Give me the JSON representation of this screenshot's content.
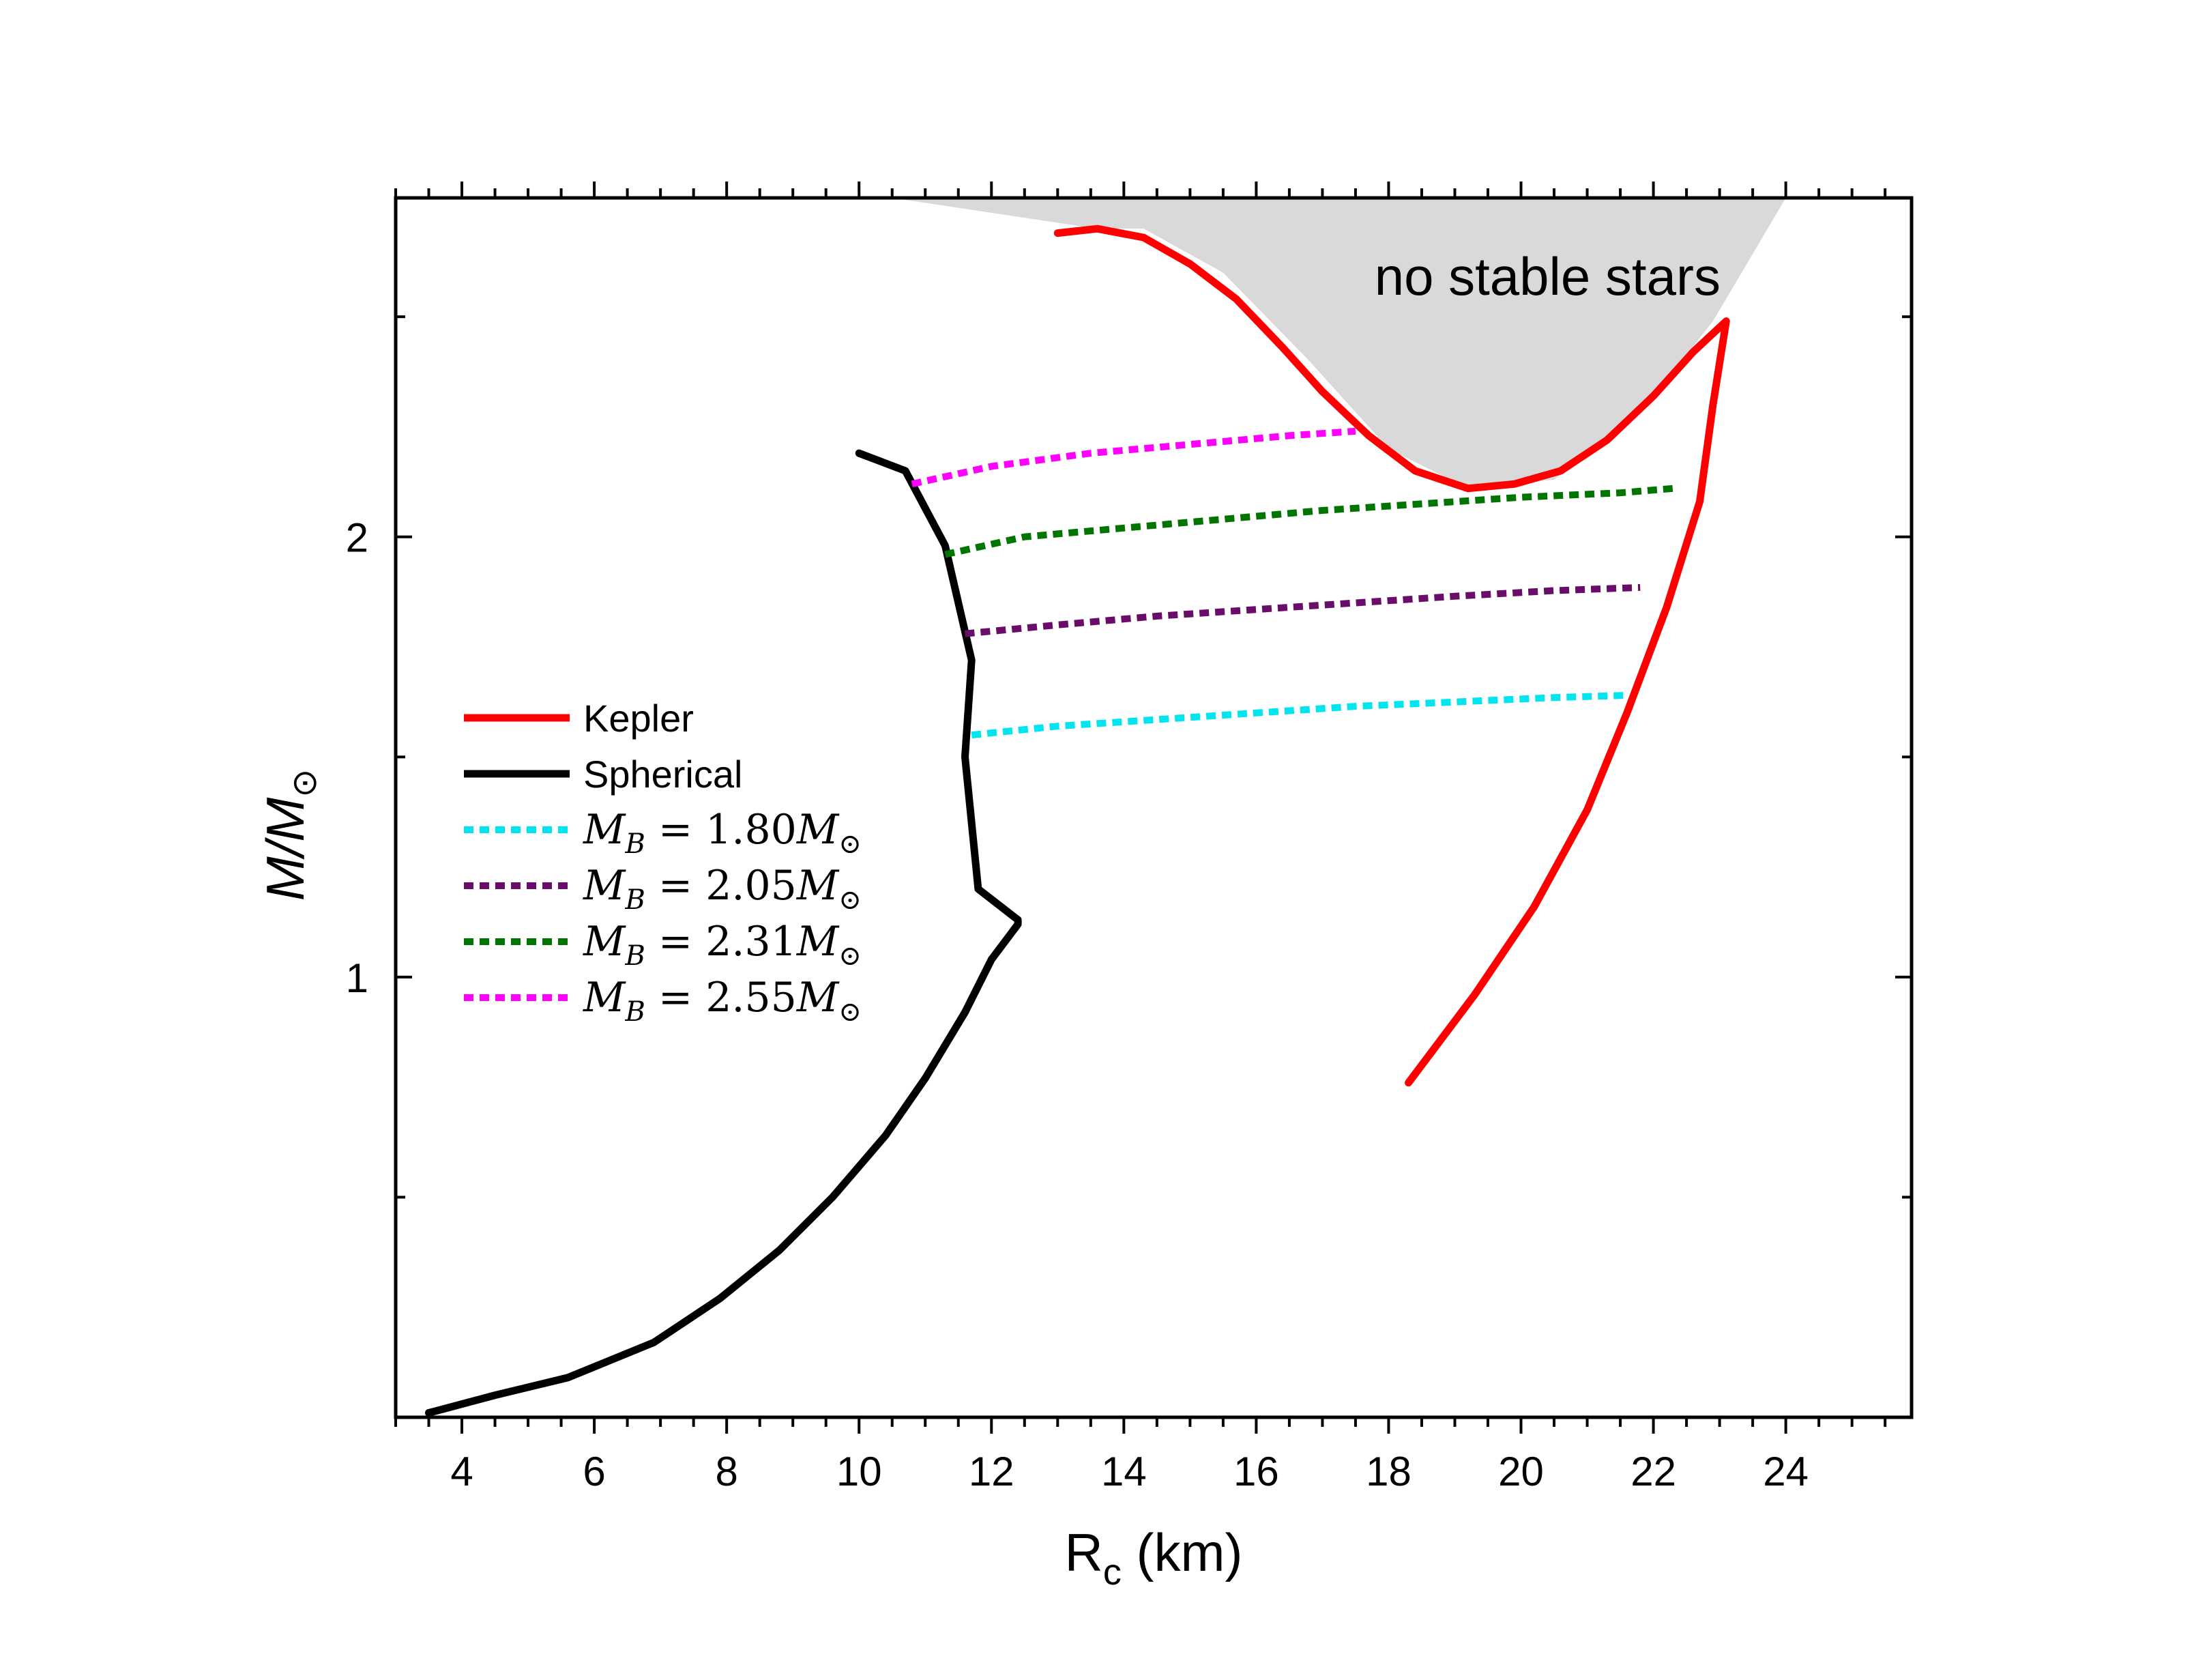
{
  "chart_data": {
    "type": "line",
    "title": "",
    "xlabel": "R",
    "xlabel_sub": "c",
    "xlabel_unit": " (km)",
    "ylabel": "M/M",
    "ylabel_sub": "⊙",
    "xlim": [
      3,
      25.9
    ],
    "ylim": [
      0,
      2.77
    ],
    "xticks": [
      4,
      6,
      8,
      10,
      12,
      14,
      16,
      18,
      20,
      22,
      24
    ],
    "xtick_labels": [
      "4",
      "6",
      "8",
      "10",
      "12",
      "14",
      "16",
      "18",
      "20",
      "22",
      "24"
    ],
    "yticks": [
      1,
      2
    ],
    "ytick_labels": [
      "1",
      "2"
    ],
    "grid": false,
    "legend_position": "middle-left",
    "annotation": "no stable stars",
    "no_stable_region": {
      "color": "#d9d9d9",
      "boundary": [
        [
          10.5,
          2.77
        ],
        [
          13.6,
          2.7
        ],
        [
          14.3,
          2.7
        ],
        [
          15.5,
          2.6
        ],
        [
          16.8,
          2.4
        ],
        [
          18.0,
          2.2
        ],
        [
          19.2,
          2.11
        ],
        [
          20.5,
          2.13
        ],
        [
          21.8,
          2.28
        ],
        [
          22.9,
          2.49
        ],
        [
          24.0,
          2.77
        ]
      ]
    },
    "series": [
      {
        "name": "Kepler",
        "color": "#ff0000",
        "style": "solid",
        "x": [
          13.0,
          13.6,
          14.3,
          15.0,
          15.7,
          16.4,
          17.0,
          17.7,
          18.4,
          19.2,
          19.9,
          20.6,
          21.3,
          22.0,
          22.6,
          23.1,
          22.9,
          22.7,
          22.2,
          21.6,
          21.0,
          20.2,
          19.3,
          18.3
        ],
        "values": [
          2.69,
          2.7,
          2.68,
          2.62,
          2.54,
          2.43,
          2.33,
          2.23,
          2.15,
          2.11,
          2.12,
          2.15,
          2.22,
          2.32,
          2.42,
          2.49,
          2.3,
          2.08,
          1.84,
          1.6,
          1.38,
          1.16,
          0.96,
          0.76
        ]
      },
      {
        "name": "Spherical",
        "color": "#000000",
        "style": "solid",
        "x": [
          3.5,
          4.5,
          5.6,
          6.9,
          7.9,
          8.8,
          9.6,
          10.4,
          11.0,
          11.6,
          12.0,
          12.4,
          12.4,
          11.8,
          11.6,
          11.7,
          11.3,
          10.7,
          10.0
        ],
        "values": [
          0.01,
          0.05,
          0.09,
          0.17,
          0.27,
          0.38,
          0.5,
          0.64,
          0.77,
          0.92,
          1.04,
          1.12,
          1.13,
          1.2,
          1.5,
          1.72,
          1.98,
          2.15,
          2.19
        ]
      },
      {
        "name": "M_B = 1.80M⊙",
        "label_parts": [
          "M",
          "B",
          " = 1.80",
          "M",
          "⊙"
        ],
        "color": "#00e5ee",
        "style": "dotted",
        "x": [
          11.7,
          13.0,
          14.5,
          16.0,
          17.5,
          19.0,
          20.5,
          21.6
        ],
        "values": [
          1.55,
          1.57,
          1.585,
          1.6,
          1.615,
          1.625,
          1.635,
          1.64
        ]
      },
      {
        "name": "M_B = 2.05M⊙",
        "label_parts": [
          "M",
          "B",
          " = 2.05",
          "M",
          "⊙"
        ],
        "color": "#6a0d6a",
        "style": "dotted",
        "x": [
          11.6,
          13.0,
          14.5,
          16.0,
          17.5,
          19.0,
          20.5,
          21.8
        ],
        "values": [
          1.78,
          1.8,
          1.82,
          1.835,
          1.85,
          1.865,
          1.878,
          1.885
        ]
      },
      {
        "name": "M_B = 2.31M⊙",
        "label_parts": [
          "M",
          "B",
          " = 2.31",
          "M",
          "⊙"
        ],
        "color": "#007500",
        "style": "dotted",
        "x": [
          11.3,
          12.5,
          14.0,
          15.5,
          17.0,
          18.5,
          20.0,
          21.5,
          22.3
        ],
        "values": [
          1.96,
          2.0,
          2.02,
          2.04,
          2.06,
          2.075,
          2.09,
          2.1,
          2.11
        ]
      },
      {
        "name": "M_B = 2.55M⊙",
        "label_parts": [
          "M",
          "B",
          " = 2.55",
          "M",
          "⊙"
        ],
        "color": "#ff00ff",
        "style": "dotted",
        "x": [
          10.8,
          12.0,
          13.5,
          15.0,
          16.5,
          17.5
        ],
        "values": [
          2.12,
          2.16,
          2.19,
          2.21,
          2.23,
          2.24
        ]
      }
    ]
  }
}
